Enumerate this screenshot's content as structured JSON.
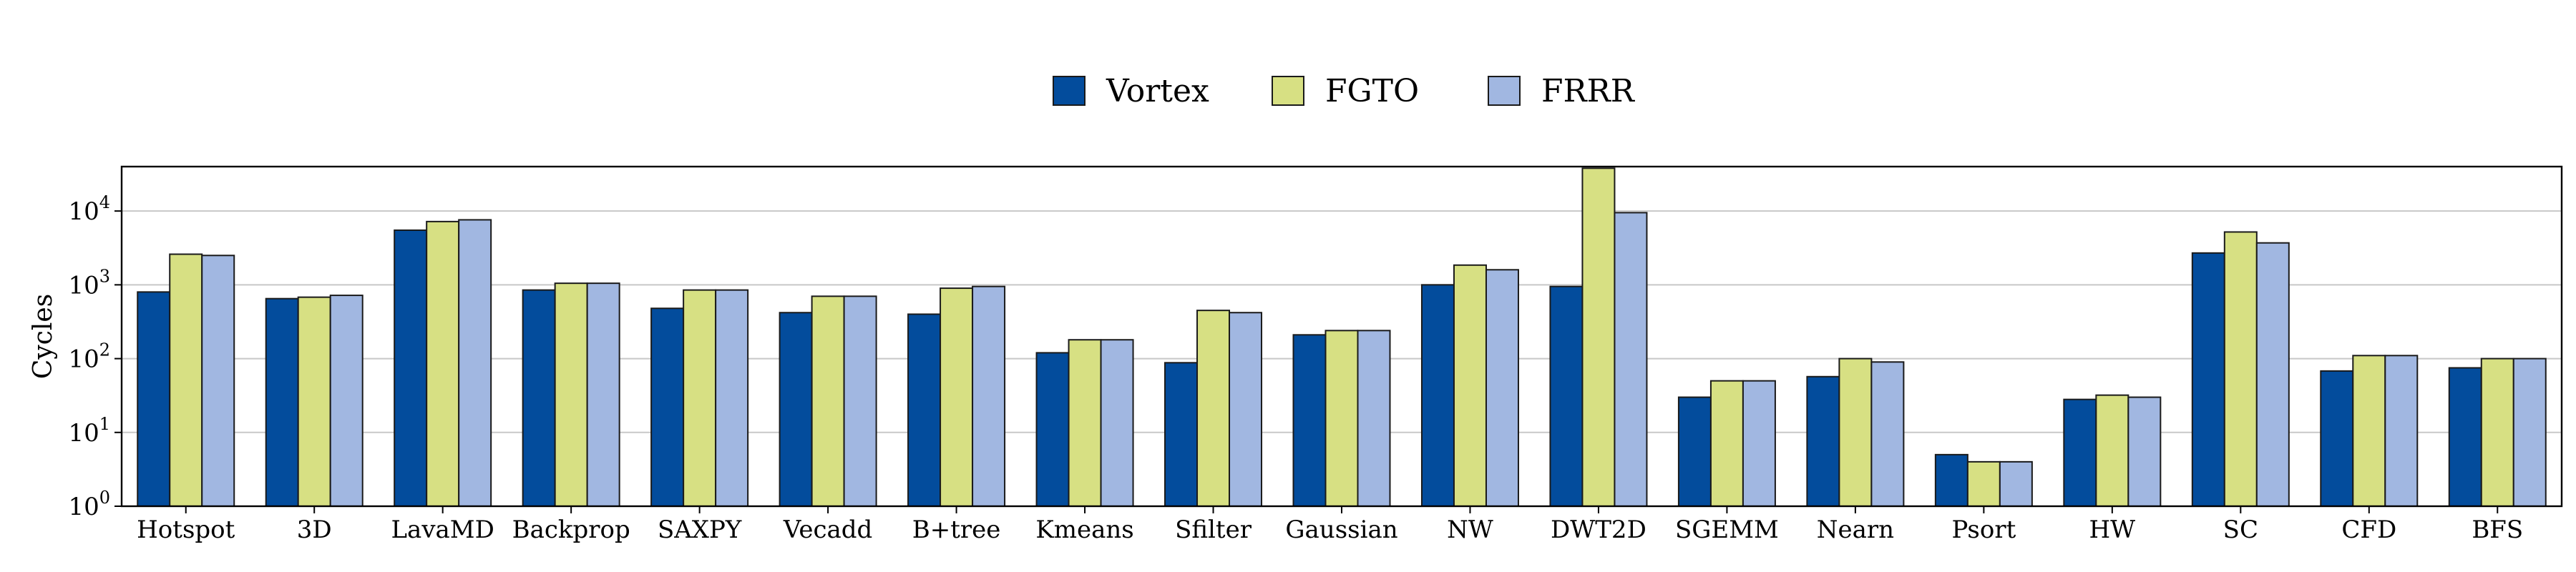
{
  "chart_data": {
    "type": "bar",
    "ylabel": "Cycles",
    "yscale": "log",
    "ylim": [
      1,
      40000
    ],
    "yticks": [
      {
        "base": "10",
        "exp": "0",
        "value": 1
      },
      {
        "base": "10",
        "exp": "1",
        "value": 10
      },
      {
        "base": "10",
        "exp": "2",
        "value": 100
      },
      {
        "base": "10",
        "exp": "3",
        "value": 1000
      },
      {
        "base": "10",
        "exp": "4",
        "value": 10000
      }
    ],
    "grid": "horizontal",
    "legend_position": "top-center",
    "categories": [
      "Hotspot",
      "3D",
      "LavaMD",
      "Backprop",
      "SAXPY",
      "Vecadd",
      "B+tree",
      "Kmeans",
      "Sfilter",
      "Gaussian",
      "NW",
      "DWT2D",
      "SGEMM",
      "Nearn",
      "Psort",
      "HW",
      "SC",
      "CFD",
      "BFS"
    ],
    "series": [
      {
        "name": "Vortex",
        "color": "#034c9c",
        "values": [
          800,
          650,
          5500,
          850,
          480,
          420,
          400,
          120,
          88,
          210,
          1000,
          950,
          30,
          57,
          5,
          28,
          2700,
          68,
          75
        ]
      },
      {
        "name": "FGTO",
        "color": "#d7e083",
        "values": [
          2600,
          680,
          7200,
          1050,
          850,
          700,
          900,
          180,
          450,
          240,
          1850,
          38000,
          50,
          100,
          4,
          32,
          5200,
          110,
          100
        ]
      },
      {
        "name": "FRRR",
        "color": "#a1b7e1",
        "values": [
          2500,
          720,
          7600,
          1050,
          850,
          700,
          950,
          180,
          420,
          240,
          1600,
          9500,
          50,
          90,
          4,
          30,
          3700,
          110,
          100
        ]
      }
    ]
  }
}
